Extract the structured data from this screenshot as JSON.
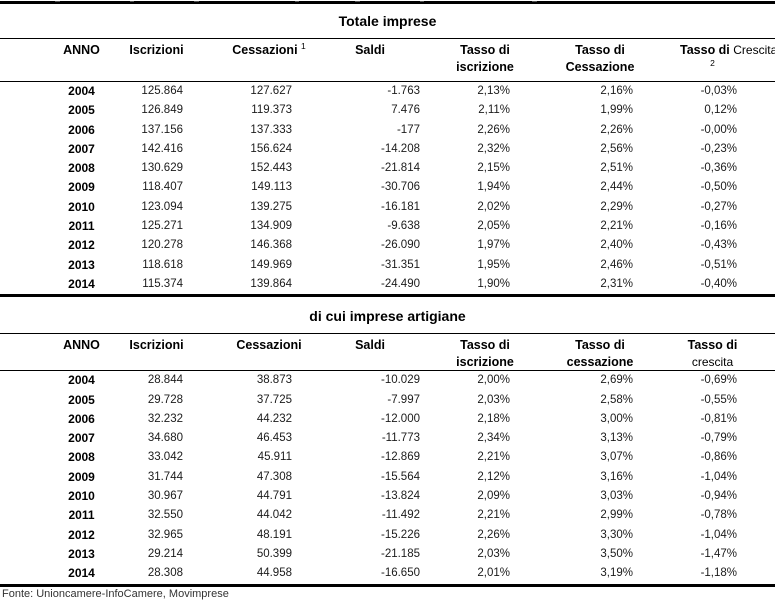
{
  "footer": {
    "source": "Fonte: Unioncamere-InfoCamere, Movimprese"
  },
  "table_totale": {
    "title": "Totale imprese",
    "headers": {
      "anno": "ANNO",
      "iscrizioni": "Iscrizioni",
      "cessazioni": "Cessazioni",
      "cessazioni_sup": "1",
      "saldi": "Saldi",
      "tasso_iscrizione_l1": "Tasso di",
      "tasso_iscrizione_l2": "iscrizione",
      "tasso_cessazione_l1": "Tasso di",
      "tasso_cessazione_l2": "Cessazione",
      "tasso_crescita_l1": "Tasso di",
      "tasso_crescita_word": "Crescita",
      "tasso_crescita_sup": "2"
    },
    "rows": [
      [
        "2004",
        "125.864",
        "127.627",
        "-1.763",
        "2,13%",
        "2,16%",
        "-0,03%"
      ],
      [
        "2005",
        "126.849",
        "119.373",
        "7.476",
        "2,11%",
        "1,99%",
        "0,12%"
      ],
      [
        "2006",
        "137.156",
        "137.333",
        "-177",
        "2,26%",
        "2,26%",
        "-0,00%"
      ],
      [
        "2007",
        "142.416",
        "156.624",
        "-14.208",
        "2,32%",
        "2,56%",
        "-0,23%"
      ],
      [
        "2008",
        "130.629",
        "152.443",
        "-21.814",
        "2,15%",
        "2,51%",
        "-0,36%"
      ],
      [
        "2009",
        "118.407",
        "149.113",
        "-30.706",
        "1,94%",
        "2,44%",
        "-0,50%"
      ],
      [
        "2010",
        "123.094",
        "139.275",
        "-16.181",
        "2,02%",
        "2,29%",
        "-0,27%"
      ],
      [
        "2011",
        "125.271",
        "134.909",
        "-9.638",
        "2,05%",
        "2,21%",
        "-0,16%"
      ],
      [
        "2012",
        "120.278",
        "146.368",
        "-26.090",
        "1,97%",
        "2,40%",
        "-0,43%"
      ],
      [
        "2013",
        "118.618",
        "149.969",
        "-31.351",
        "1,95%",
        "2,46%",
        "-0,51%"
      ],
      [
        "2014",
        "115.374",
        "139.864",
        "-24.490",
        "1,90%",
        "2,31%",
        "-0,40%"
      ]
    ]
  },
  "table_artigiane": {
    "title": "di cui imprese artigiane",
    "headers": {
      "anno": "ANNO",
      "iscrizioni": "Iscrizioni",
      "cessazioni": "Cessazioni",
      "saldi": "Saldi",
      "tasso_iscrizione_l1": "Tasso di",
      "tasso_iscrizione_l2": "iscrizione",
      "tasso_cessazione_l1": "Tasso di",
      "tasso_cessazione_l2": "cessazione",
      "tasso_crescita_l1": "Tasso di",
      "tasso_crescita_l2": "crescita"
    },
    "rows": [
      [
        "2004",
        "28.844",
        "38.873",
        "-10.029",
        "2,00%",
        "2,69%",
        "-0,69%"
      ],
      [
        "2005",
        "29.728",
        "37.725",
        "-7.997",
        "2,03%",
        "2,58%",
        "-0,55%"
      ],
      [
        "2006",
        "32.232",
        "44.232",
        "-12.000",
        "2,18%",
        "3,00%",
        "-0,81%"
      ],
      [
        "2007",
        "34.680",
        "46.453",
        "-11.773",
        "2,34%",
        "3,13%",
        "-0,79%"
      ],
      [
        "2008",
        "33.042",
        "45.911",
        "-12.869",
        "2,21%",
        "3,07%",
        "-0,86%"
      ],
      [
        "2009",
        "31.744",
        "47.308",
        "-15.564",
        "2,12%",
        "3,16%",
        "-1,04%"
      ],
      [
        "2010",
        "30.967",
        "44.791",
        "-13.824",
        "2,09%",
        "3,03%",
        "-0,94%"
      ],
      [
        "2011",
        "32.550",
        "44.042",
        "-11.492",
        "2,21%",
        "2,99%",
        "-0,78%"
      ],
      [
        "2012",
        "32.965",
        "48.191",
        "-15.226",
        "2,26%",
        "3,30%",
        "-1,04%"
      ],
      [
        "2013",
        "29.214",
        "50.399",
        "-21.185",
        "2,03%",
        "3,50%",
        "-1,47%"
      ],
      [
        "2014",
        "28.308",
        "44.958",
        "-16.650",
        "2,01%",
        "3,19%",
        "-1,18%"
      ]
    ]
  }
}
